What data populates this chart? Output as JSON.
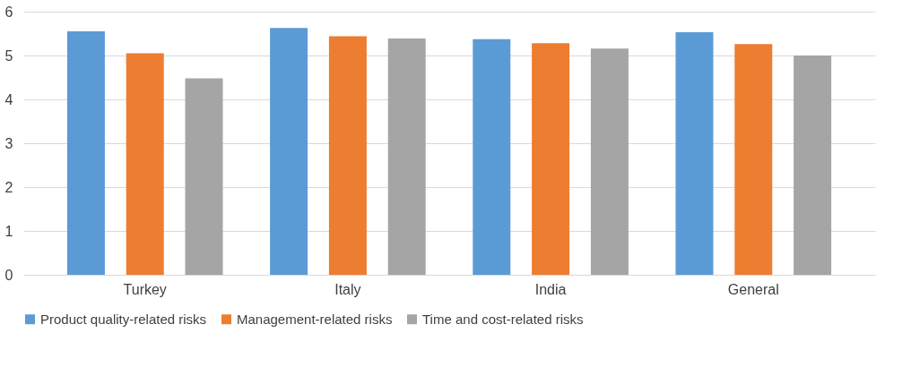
{
  "chart_data": {
    "type": "bar",
    "categories": [
      "Turkey",
      "Italy",
      "India",
      "General"
    ],
    "series": [
      {
        "name": "Product quality-related risks",
        "color": "#5b9bd5",
        "values": [
          5.55,
          5.63,
          5.37,
          5.53
        ]
      },
      {
        "name": "Management-related risks",
        "color": "#ed7d31",
        "values": [
          5.05,
          5.44,
          5.28,
          5.26
        ]
      },
      {
        "name": "Time and cost-related risks",
        "color": "#a5a5a5",
        "values": [
          4.48,
          5.39,
          5.16,
          5.0
        ]
      }
    ],
    "ylim": [
      0,
      6
    ],
    "yticks": [
      0,
      1,
      2,
      3,
      4,
      5,
      6
    ],
    "grid": "y",
    "legend": "bottom"
  }
}
